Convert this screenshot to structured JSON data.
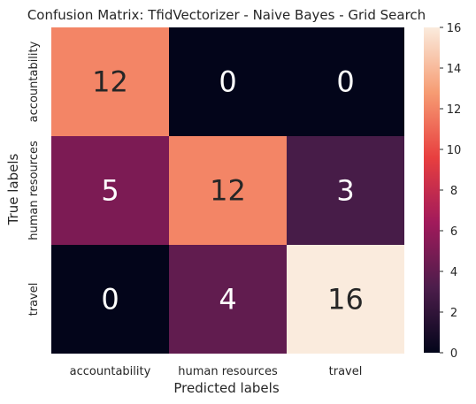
{
  "chart_data": {
    "type": "heatmap",
    "title": "Confusion Matrix: TfidVectorizer - Naive Bayes - Grid Search",
    "xlabel": "Predicted labels",
    "ylabel": "True labels",
    "x_categories": [
      "accountability",
      "human resources",
      "travel"
    ],
    "y_categories": [
      "accountability",
      "human resources",
      "travel"
    ],
    "values": [
      [
        12,
        0,
        0
      ],
      [
        5,
        12,
        3
      ],
      [
        0,
        4,
        16
      ]
    ],
    "colorbar": {
      "min": 0,
      "max": 16,
      "ticks": [
        0,
        2,
        4,
        6,
        8,
        10,
        12,
        14,
        16
      ]
    },
    "colormap": "rocket",
    "colormap_stops": [
      "#03051a",
      "#4c1d4b",
      "#a11a5b",
      "#e83f3f",
      "#f69c73",
      "#faebdd"
    ]
  }
}
